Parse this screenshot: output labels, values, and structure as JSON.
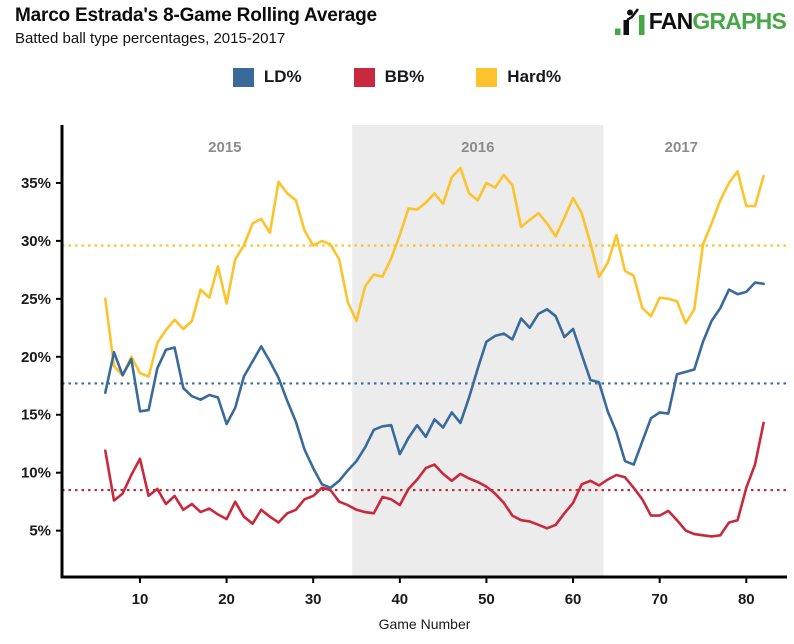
{
  "header": {
    "title": "Marco Estrada's 8-Game Rolling Average",
    "subtitle": "Batted ball type percentages, 2015-2017"
  },
  "logo": {
    "fan": "FAN",
    "graphs": "GRAPHS",
    "green": "#45a745",
    "black": "#101010"
  },
  "legend": [
    {
      "label": "LD%",
      "color": "#3a6a9c"
    },
    {
      "label": "BB%",
      "color": "#c9293c"
    },
    {
      "label": "Hard%",
      "color": "#fcc32d"
    }
  ],
  "chart_data": {
    "type": "line",
    "title": "Marco Estrada's 8-Game Rolling Average",
    "subtitle": "Batted ball type percentages, 2015-2017",
    "xlabel": "Game Number",
    "xlim": [
      1.0,
      84.7
    ],
    "ylim": [
      1.0,
      40.0
    ],
    "x_ticks": [
      10,
      20,
      30,
      40,
      50,
      60,
      70,
      80
    ],
    "y_ticks": [
      5,
      10,
      15,
      20,
      25,
      30,
      35
    ],
    "y_tick_suffix": "%",
    "grid": false,
    "legend_position": "top",
    "bands": [
      {
        "label": "2016",
        "from": 34.5,
        "to": 63.5,
        "color": "#ececec"
      }
    ],
    "year_labels": [
      {
        "text": "2015",
        "x": 19.8
      },
      {
        "text": "2016",
        "x": 49.0
      },
      {
        "text": "2017",
        "x": 72.5
      }
    ],
    "x": [
      6,
      7,
      8,
      9,
      10,
      11,
      12,
      13,
      14,
      15,
      16,
      17,
      18,
      19,
      20,
      21,
      22,
      23,
      24,
      25,
      26,
      27,
      28,
      29,
      30,
      31,
      32,
      33,
      34,
      35,
      36,
      37,
      38,
      39,
      40,
      41,
      42,
      43,
      44,
      45,
      46,
      47,
      48,
      49,
      50,
      51,
      52,
      53,
      54,
      55,
      56,
      57,
      58,
      59,
      60,
      61,
      62,
      63,
      64,
      65,
      66,
      67,
      68,
      69,
      70,
      71,
      72,
      73,
      74,
      75,
      76,
      77,
      78,
      79,
      80,
      81,
      82
    ],
    "series": [
      {
        "name": "LD%",
        "color": "#3a6a9c",
        "avg_line": 17.7,
        "values": [
          16.9,
          20.4,
          18.4,
          19.8,
          15.3,
          15.4,
          19.0,
          20.6,
          20.8,
          17.3,
          16.6,
          16.3,
          16.7,
          16.5,
          14.2,
          15.6,
          18.3,
          19.6,
          20.9,
          19.6,
          18.2,
          16.2,
          14.4,
          12.0,
          10.4,
          9.0,
          8.7,
          9.3,
          10.2,
          11.0,
          12.2,
          13.7,
          14.0,
          14.1,
          11.6,
          13.0,
          14.1,
          13.1,
          14.6,
          13.9,
          15.2,
          14.3,
          16.5,
          19.0,
          21.3,
          21.8,
          22.0,
          21.5,
          23.3,
          22.5,
          23.7,
          24.1,
          23.5,
          21.7,
          22.4,
          20.2,
          18.0,
          17.8,
          15.3,
          13.5,
          11.0,
          10.7,
          12.7,
          14.7,
          15.2,
          15.1,
          18.5,
          18.7,
          18.9,
          21.3,
          23.1,
          24.2,
          25.8,
          25.4,
          25.6,
          26.4,
          26.3
        ]
      },
      {
        "name": "BB%",
        "color": "#c9293c",
        "avg_line": 8.5,
        "values": [
          11.9,
          7.6,
          8.2,
          9.8,
          11.2,
          8.0,
          8.6,
          7.3,
          8.0,
          6.8,
          7.3,
          6.6,
          6.9,
          6.4,
          6.0,
          7.5,
          6.2,
          5.6,
          6.8,
          6.2,
          5.7,
          6.5,
          6.8,
          7.7,
          8.0,
          8.7,
          8.5,
          7.5,
          7.2,
          6.8,
          6.6,
          6.5,
          7.9,
          7.7,
          7.2,
          8.6,
          9.4,
          10.4,
          10.7,
          9.9,
          9.3,
          9.9,
          9.5,
          9.2,
          8.8,
          8.2,
          7.4,
          6.3,
          5.9,
          5.8,
          5.5,
          5.2,
          5.5,
          6.5,
          7.4,
          9.0,
          9.3,
          8.9,
          9.4,
          9.8,
          9.6,
          8.7,
          7.7,
          6.3,
          6.3,
          6.7,
          5.9,
          5.0,
          4.7,
          4.6,
          4.5,
          4.6,
          5.7,
          5.9,
          8.7,
          10.7,
          14.3
        ]
      },
      {
        "name": "Hard%",
        "color": "#fcc32d",
        "avg_line": 29.6,
        "values": [
          25.0,
          19.2,
          18.4,
          20.0,
          18.6,
          18.3,
          21.2,
          22.3,
          23.2,
          22.4,
          23.1,
          25.8,
          25.1,
          27.8,
          24.6,
          28.4,
          29.6,
          31.5,
          31.9,
          30.7,
          35.1,
          34.1,
          33.5,
          30.9,
          29.6,
          30.0,
          29.7,
          28.4,
          24.7,
          23.1,
          26.1,
          27.1,
          26.9,
          28.5,
          30.5,
          32.8,
          32.7,
          33.3,
          34.1,
          33.2,
          35.5,
          36.3,
          34.1,
          33.5,
          35.0,
          34.6,
          35.7,
          34.8,
          31.2,
          31.8,
          32.4,
          31.5,
          30.4,
          32.0,
          33.7,
          32.4,
          29.8,
          26.9,
          28.1,
          30.5,
          27.4,
          27.0,
          24.2,
          23.5,
          25.1,
          25.0,
          24.8,
          22.9,
          24.1,
          29.7,
          31.5,
          33.5,
          35.0,
          36.0,
          33.0,
          33.0,
          35.6
        ]
      }
    ]
  }
}
